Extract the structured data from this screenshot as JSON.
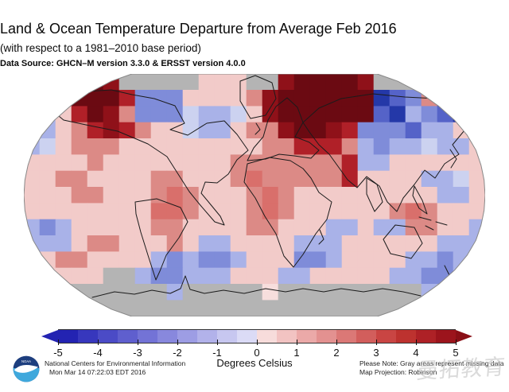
{
  "header": {
    "title": "Land & Ocean Temperature Departure from Average Feb 2016",
    "subtitle": "(with respect to a 1981–2010 base period)",
    "data_source": "Data Source: GHCN–M version 3.3.0 & ERSST version 4.0.0"
  },
  "map": {
    "missing_data_color": "#b4b4b4",
    "palette": {
      "M": "#6b0a12",
      "m": "#8f1119",
      "8": "#b02028",
      "7": "#c23a34",
      "6": "#cf5450",
      "5": "#d96f6b",
      "4": "#dc8a86",
      "3": "#e7a3a1",
      "2": "#f2cbc9",
      "1": "#f7dedd",
      "f": "#e0e2f6",
      "e": "#ccd2f0",
      "d": "#a9b2e8",
      "c": "#7f8cd9",
      "b": "#5563c8",
      "9": "#2438a8",
      "a": "#17277e",
      "g": "#b4b4b4"
    },
    "grid_rows": [
      "gggmMmggggg222ggmMMMMmgggg77g",
      "e24MMM8ccc22224mMMMMMM9bc49ac",
      "ed28Mm4cccedde2mMMMMMMb9dcb9d",
      "dd248m8422edd244mMMm8cccbdd2d",
      "de2444222222222448884dcddedd2",
      "222242222222244444448dd222222",
      "2244222244222454444482222dde2",
      "22244222454222454222222222dd2",
      "22222222554222454222222454222",
      "dcd2222244222244 22dd2dd4422dd",
      "ddd24422242dd2222ddd222222ddd",
      "22442222dcdccd222ccd2222ddcdd",
      "g2222ggdccddd222dd22222ddccdg",
      "gggggggggdggggg1gggggggggdggg",
      "ggggggggggggggggggggggggggggg"
    ]
  },
  "colorbar": {
    "unit_label": "Degrees Celsius",
    "ticks": [
      "-5",
      "-4",
      "-3",
      "-2",
      "-1",
      "0",
      "1",
      "2",
      "3",
      "4",
      "5"
    ],
    "left_arrow_color": "#2323b2",
    "right_arrow_color": "#8a0f16",
    "segments": [
      "#2323b2",
      "#3737bd",
      "#4b4bc6",
      "#5f5fce",
      "#7373d6",
      "#8888dd",
      "#9d9de4",
      "#b2b2ea",
      "#c7c7f0",
      "#dbdbf6",
      "#f7dcdb",
      "#f2c3c2",
      "#eba9a8",
      "#e39190",
      "#db7876",
      "#d25e5c",
      "#c94543",
      "#bd322f",
      "#ae2126",
      "#9c141c"
    ]
  },
  "footer": {
    "org": "National Centers for Environmental Information",
    "timestamp": "Mon Mar 14 07:22:03 EDT 2016",
    "note": "Please Note: Gray areas represent missing data",
    "projection": "Map Projection: Robinson",
    "logo_text": "NOAA"
  },
  "watermark": {
    "text": "曼拓教育"
  }
}
